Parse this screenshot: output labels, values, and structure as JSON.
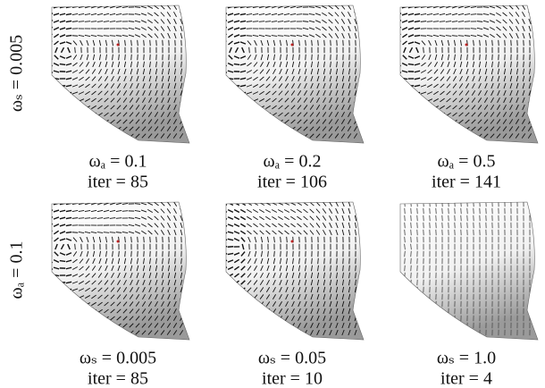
{
  "rows": [
    {
      "label": "ωₛ = 0.005",
      "panels": [
        {
          "param": "ωₐ = 0.1",
          "iter": "iter = 85"
        },
        {
          "param": "ωₐ = 0.2",
          "iter": "iter = 106"
        },
        {
          "param": "ωₐ = 0.5",
          "iter": "iter = 141"
        }
      ]
    },
    {
      "label": "ωₐ = 0.1",
      "panels": [
        {
          "param": "ωₛ = 0.005",
          "iter": "iter = 85"
        },
        {
          "param": "ωₛ = 0.05",
          "iter": "iter = 10"
        },
        {
          "param": "ωₛ = 1.0",
          "iter": "iter = 4"
        }
      ]
    }
  ]
}
